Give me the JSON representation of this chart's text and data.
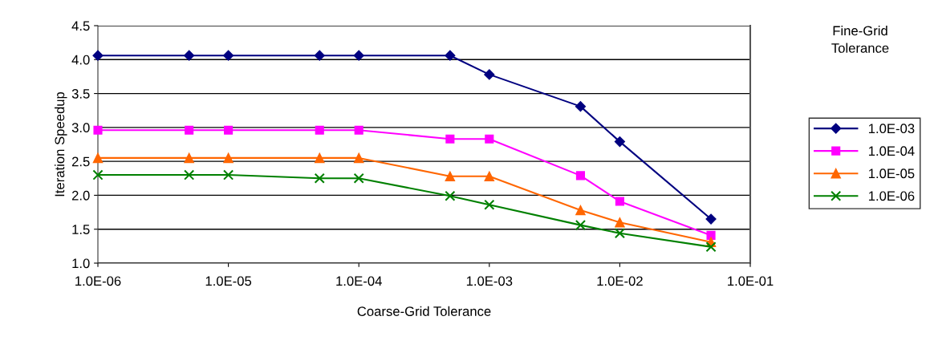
{
  "chart_data": {
    "type": "line",
    "xlabel": "Coarse-Grid Tolerance",
    "ylabel": "Iteration Speedup",
    "legend_title": "Fine-Grid Tolerance",
    "x": [
      1e-06,
      5e-06,
      1e-05,
      5e-05,
      0.0001,
      0.0005,
      0.001,
      0.005,
      0.01,
      0.05
    ],
    "series": [
      {
        "name": "1.0E-03",
        "color": "#000080",
        "marker": "diamond",
        "values": [
          4.06,
          4.06,
          4.06,
          4.06,
          4.06,
          4.06,
          3.78,
          3.31,
          2.79,
          1.65
        ]
      },
      {
        "name": "1.0E-04",
        "color": "#ff00ff",
        "marker": "square",
        "values": [
          2.96,
          2.96,
          2.96,
          2.96,
          2.96,
          2.83,
          2.83,
          2.29,
          1.91,
          1.41
        ]
      },
      {
        "name": "1.0E-05",
        "color": "#ff6600",
        "marker": "triangle",
        "values": [
          2.55,
          2.55,
          2.55,
          2.55,
          2.55,
          2.28,
          2.28,
          1.78,
          1.6,
          1.31
        ]
      },
      {
        "name": "1.0E-06",
        "color": "#008000",
        "marker": "cross",
        "values": [
          2.3,
          2.3,
          2.3,
          2.25,
          2.25,
          1.99,
          1.86,
          1.56,
          1.44,
          1.24
        ]
      }
    ],
    "log": "x",
    "xlim": [
      1e-06,
      0.1
    ],
    "xticks": [
      {
        "value": 1e-06,
        "label": "1.0E-06"
      },
      {
        "value": 1e-05,
        "label": "1.0E-05"
      },
      {
        "value": 0.0001,
        "label": "1.0E-04"
      },
      {
        "value": 0.001,
        "label": "1.0E-03"
      },
      {
        "value": 0.01,
        "label": "1.0E-02"
      },
      {
        "value": 0.1,
        "label": "1.0E-01"
      }
    ],
    "ylim": [
      1.0,
      4.5
    ],
    "yticks": [
      {
        "value": 1.0,
        "label": "1.0"
      },
      {
        "value": 1.5,
        "label": "1.5"
      },
      {
        "value": 2.0,
        "label": "2.0"
      },
      {
        "value": 2.5,
        "label": "2.5"
      },
      {
        "value": 3.0,
        "label": "3.0"
      },
      {
        "value": 3.5,
        "label": "3.5"
      },
      {
        "value": 4.0,
        "label": "4.0"
      },
      {
        "value": 4.5,
        "label": "4.5"
      }
    ],
    "grid": "y",
    "legend": "right",
    "line_style": "solid"
  }
}
